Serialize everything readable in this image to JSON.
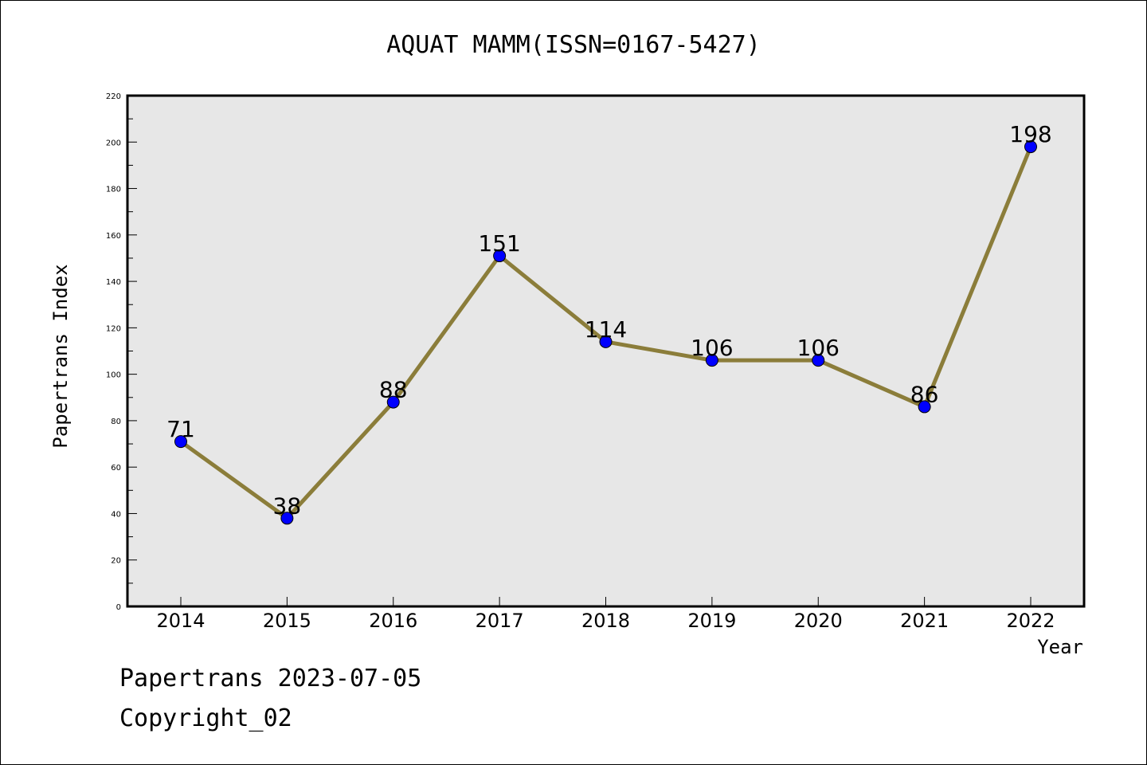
{
  "chart_data": {
    "type": "line",
    "title": "AQUAT MAMM(ISSN=0167-5427)",
    "xlabel": "Year",
    "ylabel": "Papertrans Index",
    "categories": [
      "2014",
      "2015",
      "2016",
      "2017",
      "2018",
      "2019",
      "2020",
      "2021",
      "2022"
    ],
    "series": [
      {
        "values": [
          71,
          38,
          88,
          151,
          114,
          106,
          106,
          86,
          198
        ]
      }
    ],
    "data_labels": [
      "71",
      "38",
      "88",
      "151",
      "114",
      "106",
      "106",
      "86",
      "198"
    ],
    "ylim": [
      0,
      220
    ],
    "yticks": [
      0,
      20,
      40,
      60,
      80,
      100,
      120,
      140,
      160,
      180,
      200,
      220
    ],
    "ytick_labels": [
      "0",
      "20",
      "40",
      "60",
      "80",
      "100",
      "120",
      "140",
      "160",
      "180",
      "200",
      "220"
    ],
    "grid": false,
    "legend": "none",
    "colors": {
      "line": "#8b7d3a",
      "marker": "#0000ff",
      "plot_background": "#e7e7e7"
    }
  },
  "footer": {
    "date": "Papertrans 2023-07-05",
    "copyright": "Copyright_02"
  }
}
